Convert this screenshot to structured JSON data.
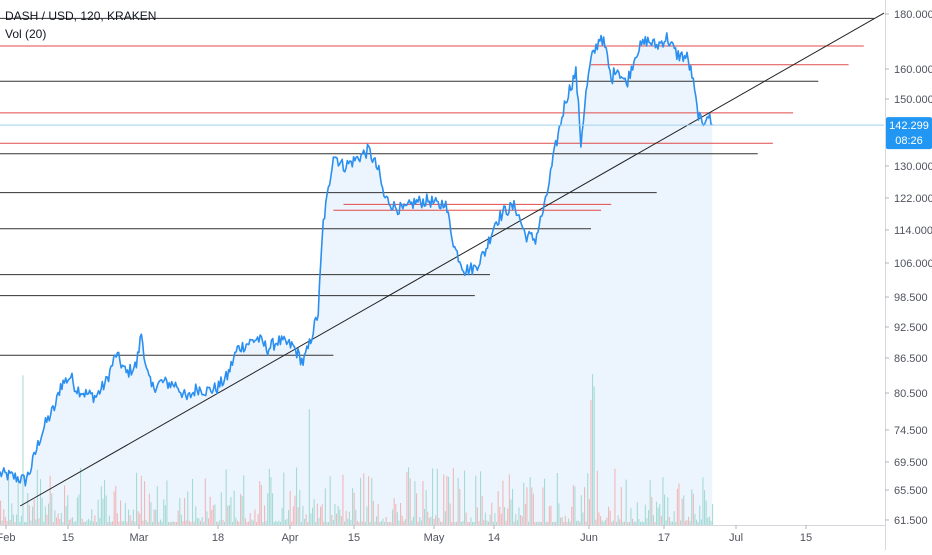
{
  "chart_data": {
    "type": "line",
    "title": "DASH / USD, 120, KRAKEN",
    "indicator_label": "Vol (20)",
    "x_ticks": [
      "Feb",
      "15",
      "Mar",
      "18",
      "Apr",
      "15",
      "May",
      "14",
      "Jun",
      "17",
      "Jul",
      "15"
    ],
    "y_ticks": [
      "180.000",
      "160.000",
      "150.000",
      "130.000",
      "122.000",
      "114.000",
      "106.000",
      "98.500",
      "92.500",
      "86.500",
      "80.500",
      "74.500",
      "69.500",
      "65.500",
      "61.500"
    ],
    "last_price_label": "142.299",
    "countdown_label": "08:26",
    "price_axis": {
      "scale": "log",
      "range": [
        61.5,
        185
      ]
    },
    "time_axis": {
      "start": "2019-02-01",
      "end": "2019-07-26"
    },
    "series": [
      {
        "values": [
          [
            "2019-02-01",
            68.5
          ],
          [
            "2019-02-04",
            68.0
          ],
          [
            "2019-02-06",
            67.5
          ],
          [
            "2019-02-07",
            69.0
          ],
          [
            "2019-02-09",
            74.0
          ],
          [
            "2019-02-10",
            76.0
          ],
          [
            "2019-02-12",
            79.0
          ],
          [
            "2019-02-13",
            82.5
          ],
          [
            "2019-02-15",
            84.0
          ],
          [
            "2019-02-16",
            82.0
          ],
          [
            "2019-02-18",
            81.0
          ],
          [
            "2019-02-20",
            80.5
          ],
          [
            "2019-02-22",
            83.0
          ],
          [
            "2019-02-24",
            88.0
          ],
          [
            "2019-02-26",
            84.5
          ],
          [
            "2019-02-28",
            86.0
          ],
          [
            "2019-03-01",
            92.0
          ],
          [
            "2019-03-02",
            85.0
          ],
          [
            "2019-03-03",
            82.0
          ],
          [
            "2019-03-05",
            83.0
          ],
          [
            "2019-03-08",
            82.5
          ],
          [
            "2019-03-10",
            80.0
          ],
          [
            "2019-03-12",
            82.0
          ],
          [
            "2019-03-14",
            81.5
          ],
          [
            "2019-03-16",
            82.0
          ],
          [
            "2019-03-18",
            84.0
          ],
          [
            "2019-03-20",
            89.0
          ],
          [
            "2019-03-22",
            90.0
          ],
          [
            "2019-03-24",
            91.0
          ],
          [
            "2019-03-26",
            89.0
          ],
          [
            "2019-03-28",
            90.5
          ],
          [
            "2019-03-31",
            89.5
          ],
          [
            "2019-04-02",
            86.5
          ],
          [
            "2019-04-03",
            89.0
          ],
          [
            "2019-04-05",
            96.0
          ],
          [
            "2019-04-06",
            116.0
          ],
          [
            "2019-04-07",
            124.0
          ],
          [
            "2019-04-08",
            134.0
          ],
          [
            "2019-04-10",
            130.5
          ],
          [
            "2019-04-12",
            132.0
          ],
          [
            "2019-04-15",
            135.0
          ],
          [
            "2019-04-17",
            129.0
          ],
          [
            "2019-04-18",
            122.5
          ],
          [
            "2019-04-20",
            120.0
          ],
          [
            "2019-04-22",
            119.0
          ],
          [
            "2019-04-24",
            121.0
          ],
          [
            "2019-04-27",
            121.5
          ],
          [
            "2019-04-29",
            120.0
          ],
          [
            "2019-04-30",
            121.5
          ],
          [
            "2019-05-01",
            116.0
          ],
          [
            "2019-05-02",
            110.0
          ],
          [
            "2019-05-04",
            105.0
          ],
          [
            "2019-05-06",
            105.5
          ],
          [
            "2019-05-08",
            109.0
          ],
          [
            "2019-05-10",
            116.0
          ],
          [
            "2019-05-12",
            119.0
          ],
          [
            "2019-05-14",
            120.0
          ],
          [
            "2019-05-16",
            113.0
          ],
          [
            "2019-05-18",
            112.0
          ],
          [
            "2019-05-20",
            121.0
          ],
          [
            "2019-05-22",
            136.0
          ],
          [
            "2019-05-24",
            150.0
          ],
          [
            "2019-05-26",
            159.0
          ],
          [
            "2019-05-27",
            137.0
          ],
          [
            "2019-05-28",
            152.0
          ],
          [
            "2019-05-29",
            163.0
          ],
          [
            "2019-05-31",
            172.0
          ],
          [
            "2019-06-01",
            166.0
          ],
          [
            "2019-06-02",
            156.0
          ],
          [
            "2019-06-03",
            161.0
          ],
          [
            "2019-06-05",
            155.0
          ],
          [
            "2019-06-07",
            166.0
          ],
          [
            "2019-06-09",
            170.0
          ],
          [
            "2019-06-11",
            168.0
          ],
          [
            "2019-06-13",
            171.0
          ],
          [
            "2019-06-15",
            165.0
          ],
          [
            "2019-06-17",
            164.0
          ],
          [
            "2019-06-18",
            158.0
          ],
          [
            "2019-06-19",
            147.0
          ],
          [
            "2019-06-20",
            142.0
          ],
          [
            "2019-06-21",
            146.0
          ],
          [
            "2019-06-22",
            142.3
          ]
        ]
      }
    ],
    "horizontal_levels": [
      {
        "price": 178.0,
        "start": "2019-02-01",
        "end": "2019-07-24",
        "color": "#333333"
      },
      {
        "price": 168.0,
        "start": "2019-02-01",
        "end": "2019-07-22",
        "color": "#e04a4a"
      },
      {
        "price": 161.5,
        "start": "2019-05-29",
        "end": "2019-07-19",
        "color": "#e04a4a"
      },
      {
        "price": 156.0,
        "start": "2019-02-01",
        "end": "2019-07-13",
        "color": "#333333"
      },
      {
        "price": 146.0,
        "start": "2019-02-01",
        "end": "2019-07-08",
        "color": "#e04a4a"
      },
      {
        "price": 137.0,
        "start": "2019-02-01",
        "end": "2019-07-04",
        "color": "#e04a4a"
      },
      {
        "price": 134.0,
        "start": "2019-02-01",
        "end": "2019-07-01",
        "color": "#333333"
      },
      {
        "price": 123.5,
        "start": "2019-02-01",
        "end": "2019-06-11",
        "color": "#333333"
      },
      {
        "price": 120.5,
        "start": "2019-04-10",
        "end": "2019-06-02",
        "color": "#e04a4a"
      },
      {
        "price": 119.0,
        "start": "2019-04-08",
        "end": "2019-05-31",
        "color": "#e04a4a"
      },
      {
        "price": 114.5,
        "start": "2019-02-01",
        "end": "2019-05-29",
        "color": "#333333"
      },
      {
        "price": 104.0,
        "start": "2019-02-01",
        "end": "2019-05-09",
        "color": "#333333"
      },
      {
        "price": 99.5,
        "start": "2019-02-01",
        "end": "2019-05-06",
        "color": "#333333"
      },
      {
        "price": 87.8,
        "start": "2019-02-01",
        "end": "2019-04-08",
        "color": "#333333"
      }
    ],
    "trendline": {
      "start": [
        "2019-02-05",
        64.0
      ],
      "end": [
        "2019-07-26",
        180.0
      ]
    },
    "grid": false,
    "colors": {
      "price_line": "#2a8ff0",
      "area_fill": "#e9f3fd",
      "volume_up": "#8fd0c5",
      "volume_down": "#f0a3a3",
      "last_price_badge": "#2196f3",
      "current_price_line": "#9fd3ec"
    }
  }
}
